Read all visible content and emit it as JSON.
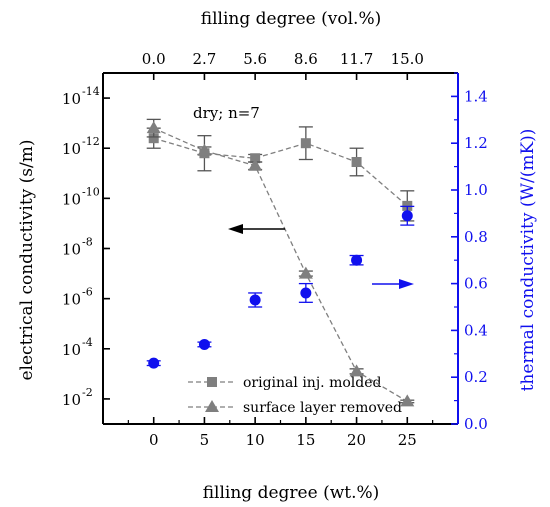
{
  "chart_data": {
    "type": "scatter",
    "title": "",
    "annotation": "dry; n=7",
    "x_bottom": {
      "label": "filling degree (wt.%)",
      "range": [
        -5,
        30
      ],
      "ticks": [
        0,
        5,
        10,
        15,
        20,
        25
      ]
    },
    "x_top": {
      "label": "filling degree (vol.%)",
      "ticks": [
        {
          "wt": 0,
          "label": "0.0"
        },
        {
          "wt": 5,
          "label": "2.7"
        },
        {
          "wt": 10,
          "label": "5.6"
        },
        {
          "wt": 15,
          "label": "8.6"
        },
        {
          "wt": 20,
          "label": "11.7"
        },
        {
          "wt": 25,
          "label": "15.0"
        }
      ]
    },
    "y_left": {
      "label": "electrical conductivity (s/m)",
      "scale": "log",
      "reversed": true,
      "range_exponent": [
        -15,
        -1
      ],
      "ticks": [
        {
          "exp": -14,
          "label": "10",
          "sup": "-14"
        },
        {
          "exp": -12,
          "label": "10",
          "sup": "-12"
        },
        {
          "exp": -10,
          "label": "10",
          "sup": "-10"
        },
        {
          "exp": -8,
          "label": "10",
          "sup": "-8"
        },
        {
          "exp": -6,
          "label": "10",
          "sup": "-6"
        },
        {
          "exp": -4,
          "label": "10",
          "sup": "-4"
        },
        {
          "exp": -2,
          "label": "10",
          "sup": "-2"
        }
      ]
    },
    "y_right": {
      "label": "thermal conductivity (W/(mK))",
      "range": [
        0.0,
        1.5
      ],
      "ticks": [
        "0.0",
        "0.2",
        "0.4",
        "0.6",
        "0.8",
        "1.0",
        "1.2",
        "1.4"
      ],
      "color": "#1010ee"
    },
    "series": [
      {
        "name": "original inj. molded",
        "axis": "left",
        "marker": "square",
        "line": "dashed",
        "color": "#7f7f7f",
        "x": [
          0,
          5,
          10,
          15,
          20,
          25
        ],
        "y_exponent": [
          -12.4,
          -11.8,
          -11.6,
          -12.2,
          -11.45,
          -9.7
        ],
        "err_exponent": [
          0.4,
          0.7,
          0.15,
          0.65,
          0.55,
          0.6
        ]
      },
      {
        "name": "surface layer removed",
        "axis": "left",
        "marker": "triangle",
        "line": "dashed",
        "color": "#7f7f7f",
        "x": [
          0,
          5,
          10,
          15,
          20,
          25
        ],
        "y_exponent": [
          -12.8,
          -11.9,
          -11.3,
          -7.0,
          -3.1,
          -1.9
        ],
        "err_exponent": [
          0.35,
          0.15,
          0.15,
          0.1,
          0.1,
          0.05
        ]
      },
      {
        "name": "thermal conductivity",
        "axis": "right",
        "marker": "circle",
        "line": "none",
        "color": "#1010ee",
        "x": [
          0,
          5,
          10,
          15,
          20,
          25
        ],
        "y": [
          0.26,
          0.34,
          0.53,
          0.56,
          0.7,
          0.89
        ],
        "err": [
          0.01,
          0.01,
          0.03,
          0.04,
          0.02,
          0.04
        ]
      }
    ],
    "legend": {
      "placement": "bottom-center",
      "entries": [
        "original inj. molded",
        "surface layer removed"
      ]
    },
    "arrows": [
      {
        "direction": "left",
        "color": "#000000",
        "meaning": "left axis"
      },
      {
        "direction": "right",
        "color": "#1010ee",
        "meaning": "right axis"
      }
    ],
    "grid": false
  }
}
